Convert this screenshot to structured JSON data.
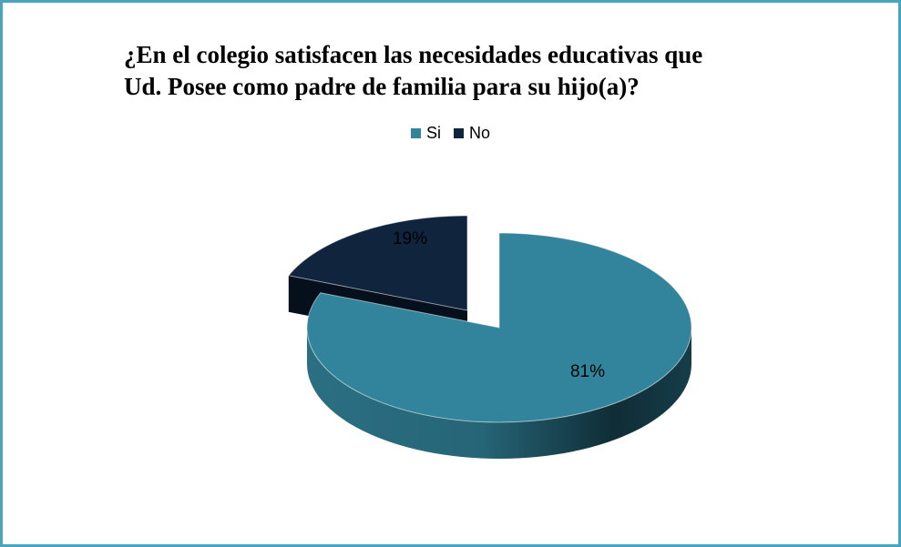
{
  "chart_data": {
    "type": "pie",
    "title_lines": [
      "¿En el colegio satisfacen las necesidades  educativas que",
      "Ud.  Posee como padre de familia para su hijo(a)?"
    ],
    "categories": [
      "Si",
      "No"
    ],
    "values": [
      81,
      19
    ],
    "data_labels": [
      "81%",
      "19%"
    ],
    "colors": [
      "#31849b",
      "#10243e"
    ],
    "legend_position": "top",
    "style": "3d-exploded"
  },
  "frame_color": "#4aa3bf"
}
